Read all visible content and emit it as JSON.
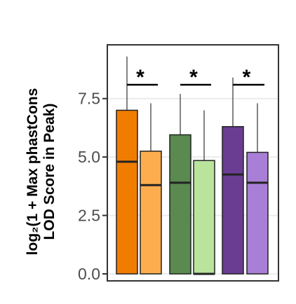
{
  "chart_data": {
    "type": "box",
    "ylabel_line1": "log₂(1 + Max phastCons",
    "ylabel_line2": "LOD Score in Peak)",
    "ylim": [
      -0.3,
      9.8
    ],
    "yticks": [
      0.0,
      2.5,
      5.0,
      7.5
    ],
    "ytick_labels": [
      "0.0",
      "2.5",
      "5.0",
      "7.5"
    ],
    "grid": true,
    "legend": "none",
    "boxes": [
      {
        "group": 1,
        "q1": 0.0,
        "median": 4.8,
        "q3": 7.0,
        "whisker_low": 0.0,
        "whisker_high": 9.3,
        "fill": "#f07d00"
      },
      {
        "group": 1,
        "q1": 0.0,
        "median": 3.8,
        "q3": 5.25,
        "whisker_low": 0.0,
        "whisker_high": 7.3,
        "fill": "#fdad4e"
      },
      {
        "group": 2,
        "q1": 0.0,
        "median": 3.9,
        "q3": 5.95,
        "whisker_low": 0.0,
        "whisker_high": 7.7,
        "fill": "#5a8a4f"
      },
      {
        "group": 2,
        "q1": 0.0,
        "median": 0.0,
        "q3": 4.85,
        "whisker_low": 0.0,
        "whisker_high": 7.0,
        "fill": "#b9e49c"
      },
      {
        "group": 3,
        "q1": 0.0,
        "median": 4.25,
        "q3": 6.3,
        "whisker_low": 0.0,
        "whisker_high": 8.4,
        "fill": "#6a3d93"
      },
      {
        "group": 3,
        "q1": 0.0,
        "median": 3.9,
        "q3": 5.2,
        "whisker_low": 0.0,
        "whisker_high": 7.3,
        "fill": "#a87ed6"
      }
    ],
    "significance": [
      {
        "group": 1,
        "label": "*"
      },
      {
        "group": 2,
        "label": "*"
      },
      {
        "group": 3,
        "label": "*"
      }
    ]
  }
}
